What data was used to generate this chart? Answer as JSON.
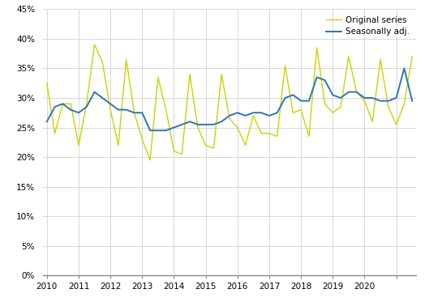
{
  "original_series": [
    32.5,
    24.0,
    29.0,
    29.0,
    22.0,
    29.0,
    39.0,
    36.0,
    28.0,
    22.0,
    36.5,
    27.5,
    23.0,
    19.5,
    33.5,
    28.0,
    21.0,
    20.5,
    34.0,
    25.0,
    22.0,
    21.5,
    34.0,
    26.5,
    25.0,
    22.0,
    27.0,
    24.0,
    24.0,
    23.5,
    35.5,
    27.5,
    28.0,
    23.5,
    38.5,
    29.0,
    27.5,
    28.5,
    37.0,
    31.0,
    29.5,
    26.0,
    36.5,
    28.5,
    25.5,
    29.0,
    37.0
  ],
  "seasonally_adj": [
    26.0,
    28.5,
    29.0,
    28.0,
    27.5,
    28.5,
    31.0,
    30.0,
    29.0,
    28.0,
    28.0,
    27.5,
    27.5,
    24.5,
    24.5,
    24.5,
    25.0,
    25.5,
    26.0,
    25.5,
    25.5,
    25.5,
    26.0,
    27.0,
    27.5,
    27.0,
    27.5,
    27.5,
    27.0,
    27.5,
    30.0,
    30.5,
    29.5,
    29.5,
    33.5,
    33.0,
    30.5,
    30.0,
    31.0,
    31.0,
    30.0,
    30.0,
    29.5,
    29.5,
    30.0,
    35.0,
    29.5
  ],
  "x_ticks": [
    0,
    4,
    8,
    12,
    16,
    20,
    24,
    28,
    32,
    36,
    40,
    44
  ],
  "x_tick_labels": [
    "2010",
    "2011",
    "2012",
    "2013",
    "2014",
    "2015",
    "2016",
    "2017",
    "2018",
    "2019",
    "2020",
    ""
  ],
  "ylim": [
    0,
    45
  ],
  "yticks": [
    0,
    5,
    10,
    15,
    20,
    25,
    30,
    35,
    40,
    45
  ],
  "line_color_original": "#c8d400",
  "line_color_seasonal": "#2e74b5",
  "legend_labels": [
    "Original series",
    "Seasonally adj."
  ],
  "background_color": "#ffffff",
  "grid_color": "#d0d0d0",
  "figsize": [
    5.29,
    3.78
  ],
  "dpi": 100
}
